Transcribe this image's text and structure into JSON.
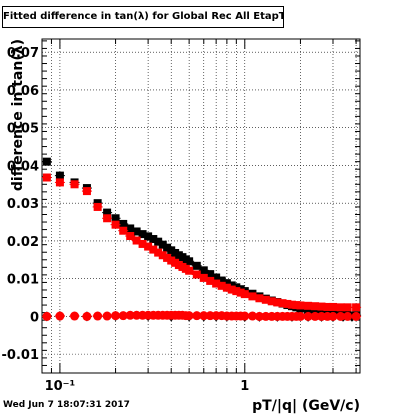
{
  "chart_data": {
    "type": "scatter",
    "title": "Fitted difference in tan(λ) for Global Rec All EtapT",
    "xlabel": "pT/|q| (GeV/c)",
    "ylabel": "difference in tan(λ)",
    "x_scale": "log",
    "xlim": [
      0.08,
      4.2
    ],
    "ylim": [
      -0.015,
      0.0735
    ],
    "grid": true,
    "legend": "none",
    "x_ticks": [
      {
        "value": 0.1,
        "label": "10⁻¹"
      },
      {
        "value": 1,
        "label": "1"
      }
    ],
    "y_ticks": [
      {
        "value": -0.01,
        "label": "-0.01"
      },
      {
        "value": 0,
        "label": "0"
      },
      {
        "value": 0.01,
        "label": "0.01"
      },
      {
        "value": 0.02,
        "label": "0.02"
      },
      {
        "value": 0.03,
        "label": "0.03"
      },
      {
        "value": 0.04,
        "label": "0.04"
      },
      {
        "value": 0.05,
        "label": "0.05"
      },
      {
        "value": 0.06,
        "label": "0.06"
      },
      {
        "value": 0.07,
        "label": "0.07"
      }
    ],
    "series": [
      {
        "color": "#000000",
        "marker": "square",
        "points": [
          [
            0.085,
            0.041
          ],
          [
            0.1,
            0.0373
          ],
          [
            0.12,
            0.0355
          ],
          [
            0.14,
            0.034
          ],
          [
            0.16,
            0.03
          ],
          [
            0.18,
            0.0275
          ],
          [
            0.2,
            0.026
          ],
          [
            0.22,
            0.0245
          ],
          [
            0.24,
            0.0233
          ],
          [
            0.26,
            0.0225
          ],
          [
            0.28,
            0.0218
          ],
          [
            0.3,
            0.0212
          ],
          [
            0.32,
            0.0205
          ],
          [
            0.34,
            0.0198
          ],
          [
            0.36,
            0.019
          ],
          [
            0.38,
            0.0182
          ],
          [
            0.4,
            0.0175
          ],
          [
            0.42,
            0.0168
          ],
          [
            0.44,
            0.0162
          ],
          [
            0.46,
            0.0157
          ],
          [
            0.48,
            0.0151
          ],
          [
            0.5,
            0.0146
          ],
          [
            0.55,
            0.0134
          ],
          [
            0.6,
            0.0122
          ],
          [
            0.65,
            0.0112
          ],
          [
            0.7,
            0.0103
          ],
          [
            0.75,
            0.0095
          ],
          [
            0.8,
            0.0088
          ],
          [
            0.85,
            0.0082
          ],
          [
            0.9,
            0.0077
          ],
          [
            0.95,
            0.0072
          ],
          [
            1.0,
            0.0067
          ],
          [
            1.1,
            0.006
          ],
          [
            1.2,
            0.0053
          ],
          [
            1.3,
            0.0047
          ],
          [
            1.4,
            0.0042
          ],
          [
            1.5,
            0.0038
          ],
          [
            1.6,
            0.0034
          ],
          [
            1.7,
            0.003
          ],
          [
            1.8,
            0.0027
          ],
          [
            1.9,
            0.0024
          ],
          [
            2.0,
            0.0021
          ],
          [
            2.2,
            0.0017
          ],
          [
            2.4,
            0.0014
          ],
          [
            2.6,
            0.0011
          ],
          [
            2.8,
            0.0009
          ],
          [
            3.0,
            0.0007
          ],
          [
            3.3,
            0.0005
          ],
          [
            3.6,
            0.0004
          ],
          [
            4.0,
            0.0003
          ]
        ]
      },
      {
        "color": "#ff0000",
        "marker": "square",
        "points": [
          [
            0.085,
            0.0368
          ],
          [
            0.1,
            0.0355
          ],
          [
            0.12,
            0.035
          ],
          [
            0.14,
            0.0332
          ],
          [
            0.16,
            0.029
          ],
          [
            0.18,
            0.026
          ],
          [
            0.2,
            0.0243
          ],
          [
            0.22,
            0.0227
          ],
          [
            0.24,
            0.0213
          ],
          [
            0.26,
            0.0201
          ],
          [
            0.28,
            0.0192
          ],
          [
            0.3,
            0.0185
          ],
          [
            0.32,
            0.0177
          ],
          [
            0.34,
            0.0169
          ],
          [
            0.36,
            0.0162
          ],
          [
            0.38,
            0.0155
          ],
          [
            0.4,
            0.0148
          ],
          [
            0.42,
            0.0142
          ],
          [
            0.44,
            0.0136
          ],
          [
            0.46,
            0.0131
          ],
          [
            0.48,
            0.0126
          ],
          [
            0.5,
            0.0121
          ],
          [
            0.55,
            0.0111
          ],
          [
            0.6,
            0.0102
          ],
          [
            0.65,
            0.0094
          ],
          [
            0.7,
            0.0087
          ],
          [
            0.75,
            0.0081
          ],
          [
            0.8,
            0.0076
          ],
          [
            0.85,
            0.0071
          ],
          [
            0.9,
            0.0067
          ],
          [
            0.95,
            0.0063
          ],
          [
            1.0,
            0.0059
          ],
          [
            1.1,
            0.0053
          ],
          [
            1.2,
            0.0048
          ],
          [
            1.3,
            0.0044
          ],
          [
            1.4,
            0.004
          ],
          [
            1.5,
            0.0037
          ],
          [
            1.6,
            0.0035
          ],
          [
            1.7,
            0.0033
          ],
          [
            1.8,
            0.0031
          ],
          [
            1.9,
            0.003
          ],
          [
            2.0,
            0.0029
          ],
          [
            2.2,
            0.0028
          ],
          [
            2.4,
            0.0027
          ],
          [
            2.6,
            0.0026
          ],
          [
            2.8,
            0.0025
          ],
          [
            3.0,
            0.0025
          ],
          [
            3.3,
            0.0024
          ],
          [
            3.6,
            0.0024
          ],
          [
            4.0,
            0.0024
          ]
        ]
      },
      {
        "color": "#000000",
        "marker": "diamond",
        "points": [
          [
            0.085,
            0.0
          ],
          [
            0.1,
            0.0001
          ],
          [
            0.14,
            0.0
          ],
          [
            0.2,
            0.0001
          ],
          [
            0.3,
            0.0001
          ],
          [
            0.4,
            0.0
          ],
          [
            0.5,
            0.0
          ],
          [
            0.6,
            0.0
          ],
          [
            0.7,
            0.0
          ],
          [
            0.8,
            0.0
          ],
          [
            1.0,
            -0.0001
          ],
          [
            1.2,
            -0.0001
          ],
          [
            1.5,
            -0.0001
          ],
          [
            1.8,
            -0.0001
          ],
          [
            2.2,
            -0.0001
          ],
          [
            2.6,
            -0.0001
          ],
          [
            3.0,
            -0.0001
          ],
          [
            3.4,
            -0.0001
          ],
          [
            3.8,
            -0.0001
          ]
        ]
      },
      {
        "color": "#ff0000",
        "marker": "circle",
        "points": [
          [
            0.085,
            0.0
          ],
          [
            0.1,
            0.0001
          ],
          [
            0.12,
            0.0001
          ],
          [
            0.14,
            0.0
          ],
          [
            0.16,
            0.0001
          ],
          [
            0.18,
            0.0001
          ],
          [
            0.2,
            0.0002
          ],
          [
            0.22,
            0.0002
          ],
          [
            0.24,
            0.0003
          ],
          [
            0.26,
            0.0003
          ],
          [
            0.28,
            0.0003
          ],
          [
            0.3,
            0.0003
          ],
          [
            0.32,
            0.0003
          ],
          [
            0.34,
            0.0003
          ],
          [
            0.36,
            0.0003
          ],
          [
            0.38,
            0.0003
          ],
          [
            0.4,
            0.0003
          ],
          [
            0.42,
            0.0003
          ],
          [
            0.44,
            0.0003
          ],
          [
            0.46,
            0.0003
          ],
          [
            0.48,
            0.0002
          ],
          [
            0.5,
            0.0002
          ],
          [
            0.55,
            0.0002
          ],
          [
            0.6,
            0.0002
          ],
          [
            0.65,
            0.0002
          ],
          [
            0.7,
            0.0002
          ],
          [
            0.75,
            0.0002
          ],
          [
            0.8,
            0.0001
          ],
          [
            0.85,
            0.0001
          ],
          [
            0.9,
            0.0001
          ],
          [
            0.95,
            0.0001
          ],
          [
            1.0,
            0.0001
          ],
          [
            1.1,
            0.0001
          ],
          [
            1.2,
            0.0
          ],
          [
            1.3,
            0.0
          ],
          [
            1.4,
            0.0
          ],
          [
            1.5,
            0.0
          ],
          [
            1.6,
            0.0
          ],
          [
            1.7,
            0.0
          ],
          [
            1.8,
            0.0
          ],
          [
            1.9,
            0.0
          ],
          [
            2.0,
            0.0
          ],
          [
            2.2,
            0.0
          ],
          [
            2.4,
            0.0
          ],
          [
            2.6,
            0.0
          ],
          [
            2.8,
            0.0
          ],
          [
            3.0,
            0.0
          ],
          [
            3.3,
            0.0
          ],
          [
            3.6,
            0.0
          ],
          [
            4.0,
            0.0
          ]
        ]
      }
    ]
  },
  "footer": {
    "timestamp": "Wed Jun  7 18:07:31 2017"
  }
}
